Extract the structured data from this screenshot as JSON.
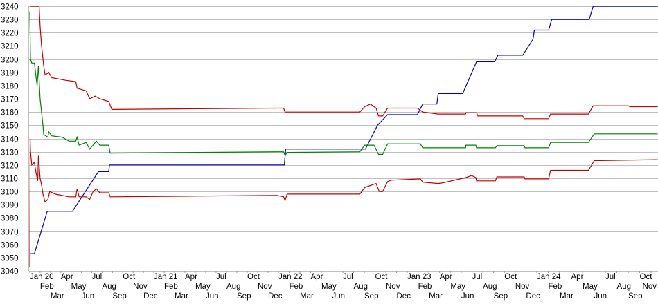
{
  "chart_data": {
    "type": "line",
    "title": "",
    "xlabel": "",
    "ylabel": "",
    "ylim": [
      3040,
      3240
    ],
    "yticks": [
      3040,
      3050,
      3060,
      3070,
      3080,
      3090,
      3100,
      3110,
      3120,
      3130,
      3140,
      3150,
      3160,
      3170,
      3180,
      3190,
      3200,
      3210,
      3220,
      3230,
      3240
    ],
    "xlim": [
      "2020-01-01",
      "2024-11-18"
    ],
    "xticks": [
      "Jan 20",
      "Feb",
      "Mar",
      "Apr",
      "May",
      "Jun",
      "Jul",
      "Aug",
      "Sep",
      "Oct",
      "Nov",
      "Dec",
      "Jan 21",
      "Feb",
      "Mar",
      "Apr",
      "May",
      "Jun",
      "Jul",
      "Aug",
      "Sep",
      "Oct",
      "Nov",
      "Dec",
      "Jan 22",
      "Feb",
      "Mar",
      "Apr",
      "May",
      "Jun",
      "Jul",
      "Aug",
      "Sep",
      "Oct",
      "Nov",
      "Dec",
      "Jan 23",
      "Feb",
      "Mar",
      "Apr",
      "May",
      "Jun",
      "Jul",
      "Aug",
      "Sep",
      "Oct",
      "Nov",
      "Dec",
      "Jan 24",
      "Feb",
      "Mar",
      "Apr",
      "May",
      "Jun",
      "Jul",
      "Aug",
      "Sep",
      "Oct",
      "Nov"
    ],
    "grid": "horizontal",
    "legend": "none",
    "series": [
      {
        "color": "#0000c0",
        "points": [
          [
            "2020-01-01",
            3043
          ],
          [
            "2020-01-02",
            3053
          ],
          [
            "2020-01-15",
            3053
          ],
          [
            "2020-02-21",
            3085
          ],
          [
            "2020-05-05",
            3085
          ],
          [
            "2020-07-21",
            3115
          ],
          [
            "2020-08-21",
            3115
          ],
          [
            "2020-08-23",
            3120
          ],
          [
            "2022-01-18",
            3120
          ],
          [
            "2022-01-22",
            3132
          ],
          [
            "2022-09-04",
            3132
          ],
          [
            "2022-10-08",
            3150
          ],
          [
            "2022-11-06",
            3158
          ],
          [
            "2023-01-30",
            3158
          ],
          [
            "2023-02-13",
            3166
          ],
          [
            "2023-03-24",
            3166
          ],
          [
            "2023-03-28",
            3174
          ],
          [
            "2023-06-05",
            3174
          ],
          [
            "2023-07-14",
            3198
          ],
          [
            "2023-09-04",
            3198
          ],
          [
            "2023-09-13",
            3203
          ],
          [
            "2023-11-22",
            3203
          ],
          [
            "2023-12-21",
            3215
          ],
          [
            "2023-12-25",
            3222
          ],
          [
            "2024-02-02",
            3222
          ],
          [
            "2024-02-10",
            3230
          ],
          [
            "2024-05-19",
            3230
          ],
          [
            "2024-05-30",
            3240
          ],
          [
            "2024-11-18",
            3240
          ]
        ]
      },
      {
        "color": "#c00000",
        "points": [
          [
            "2020-01-01",
            3240
          ],
          [
            "2020-01-29",
            3240
          ],
          [
            "2020-02-01",
            3225
          ],
          [
            "2020-02-05",
            3210
          ],
          [
            "2020-02-11",
            3195
          ],
          [
            "2020-02-15",
            3188
          ],
          [
            "2020-02-25",
            3190
          ],
          [
            "2020-03-05",
            3186
          ],
          [
            "2020-04-15",
            3184
          ],
          [
            "2020-05-15",
            3183
          ],
          [
            "2020-05-19",
            3178
          ],
          [
            "2020-06-15",
            3176
          ],
          [
            "2020-06-25",
            3170
          ],
          [
            "2020-07-11",
            3172
          ],
          [
            "2020-07-25",
            3170
          ],
          [
            "2020-08-21",
            3168
          ],
          [
            "2020-08-30",
            3162
          ],
          [
            "2021-12-27",
            3163
          ],
          [
            "2022-01-16",
            3163
          ],
          [
            "2022-01-20",
            3160
          ],
          [
            "2022-08-19",
            3160
          ],
          [
            "2022-09-02",
            3164
          ],
          [
            "2022-09-18",
            3166
          ],
          [
            "2022-10-04",
            3163
          ],
          [
            "2022-10-11",
            3157
          ],
          [
            "2022-10-23",
            3157
          ],
          [
            "2022-11-06",
            3163
          ],
          [
            "2023-01-30",
            3163
          ],
          [
            "2023-02-13",
            3160
          ],
          [
            "2023-03-28",
            3158.5
          ],
          [
            "2023-06-13",
            3158.5
          ],
          [
            "2023-06-14",
            3159.5
          ],
          [
            "2023-07-14",
            3159.5
          ],
          [
            "2023-07-18",
            3157
          ],
          [
            "2023-11-22",
            3157
          ],
          [
            "2023-11-26",
            3155
          ],
          [
            "2024-02-02",
            3155
          ],
          [
            "2024-02-07",
            3158.5
          ],
          [
            "2024-05-17",
            3158.5
          ],
          [
            "2024-05-30",
            3164.7
          ],
          [
            "2024-09-01",
            3164.7
          ],
          [
            "2024-09-06",
            3164
          ],
          [
            "2024-11-18",
            3164
          ]
        ]
      },
      {
        "color": "#008000",
        "points": [
          [
            "2020-01-01",
            3236
          ],
          [
            "2020-01-03",
            3200
          ],
          [
            "2020-01-07",
            3197
          ],
          [
            "2020-01-15",
            3197
          ],
          [
            "2020-01-19",
            3188
          ],
          [
            "2020-01-23",
            3180
          ],
          [
            "2020-01-27",
            3195
          ],
          [
            "2020-02-01",
            3170
          ],
          [
            "2020-02-05",
            3160
          ],
          [
            "2020-02-09",
            3150
          ],
          [
            "2020-02-11",
            3143
          ],
          [
            "2020-02-23",
            3141
          ],
          [
            "2020-02-25",
            3145
          ],
          [
            "2020-03-05",
            3142
          ],
          [
            "2020-04-05",
            3141
          ],
          [
            "2020-04-25",
            3138
          ],
          [
            "2020-05-15",
            3138
          ],
          [
            "2020-05-19",
            3141
          ],
          [
            "2020-05-25",
            3135
          ],
          [
            "2020-06-15",
            3137
          ],
          [
            "2020-06-25",
            3132
          ],
          [
            "2020-07-15",
            3138
          ],
          [
            "2020-07-25",
            3135
          ],
          [
            "2020-08-21",
            3135
          ],
          [
            "2020-08-25",
            3129
          ],
          [
            "2021-12-27",
            3130
          ],
          [
            "2022-01-16",
            3130
          ],
          [
            "2022-01-20",
            3127
          ],
          [
            "2022-01-26",
            3129.5
          ],
          [
            "2022-08-19",
            3130
          ],
          [
            "2022-09-02",
            3135
          ],
          [
            "2022-09-28",
            3135
          ],
          [
            "2022-10-11",
            3128
          ],
          [
            "2022-10-23",
            3128
          ],
          [
            "2022-11-06",
            3136
          ],
          [
            "2023-02-07",
            3136
          ],
          [
            "2023-02-13",
            3133
          ],
          [
            "2023-06-13",
            3133
          ],
          [
            "2023-06-14",
            3135
          ],
          [
            "2023-07-12",
            3135
          ],
          [
            "2023-07-14",
            3133
          ],
          [
            "2023-09-06",
            3133
          ],
          [
            "2023-09-10",
            3134.6
          ],
          [
            "2023-11-26",
            3134.6
          ],
          [
            "2023-11-28",
            3133
          ],
          [
            "2024-02-02",
            3133
          ],
          [
            "2024-02-07",
            3137
          ],
          [
            "2024-05-17",
            3137
          ],
          [
            "2024-06-02",
            3143.5
          ],
          [
            "2024-11-18",
            3143.5
          ]
        ]
      },
      {
        "color": "#c00000",
        "points": [
          [
            "2020-01-01",
            3043
          ],
          [
            "2020-01-02",
            3140
          ],
          [
            "2020-01-03",
            3130
          ],
          [
            "2020-01-07",
            3120
          ],
          [
            "2020-01-15",
            3122
          ],
          [
            "2020-01-19",
            3115
          ],
          [
            "2020-01-25",
            3108
          ],
          [
            "2020-01-27",
            3127
          ],
          [
            "2020-02-01",
            3110
          ],
          [
            "2020-02-05",
            3105
          ],
          [
            "2020-02-09",
            3098
          ],
          [
            "2020-02-15",
            3092
          ],
          [
            "2020-02-23",
            3094
          ],
          [
            "2020-02-28",
            3100
          ],
          [
            "2020-03-15",
            3098
          ],
          [
            "2020-04-25",
            3096
          ],
          [
            "2020-05-15",
            3096
          ],
          [
            "2020-05-19",
            3102
          ],
          [
            "2020-05-25",
            3096
          ],
          [
            "2020-06-15",
            3096
          ],
          [
            "2020-06-25",
            3094
          ],
          [
            "2020-07-05",
            3100
          ],
          [
            "2020-07-15",
            3102
          ],
          [
            "2020-07-25",
            3099
          ],
          [
            "2020-08-21",
            3099
          ],
          [
            "2020-08-25",
            3096
          ],
          [
            "2021-12-27",
            3097
          ],
          [
            "2022-01-16",
            3096
          ],
          [
            "2022-01-20",
            3093
          ],
          [
            "2022-01-26",
            3098
          ],
          [
            "2022-08-19",
            3098
          ],
          [
            "2022-09-02",
            3103
          ],
          [
            "2022-10-04",
            3106
          ],
          [
            "2022-10-13",
            3100
          ],
          [
            "2022-10-23",
            3100
          ],
          [
            "2022-11-06",
            3107.5
          ],
          [
            "2022-11-16",
            3108.5
          ],
          [
            "2023-02-07",
            3109.5
          ],
          [
            "2023-02-13",
            3107
          ],
          [
            "2023-03-28",
            3106
          ],
          [
            "2023-04-11",
            3106.6
          ],
          [
            "2023-06-14",
            3110.5
          ],
          [
            "2023-06-30",
            3112
          ],
          [
            "2023-07-12",
            3110.5
          ],
          [
            "2023-07-14",
            3108
          ],
          [
            "2023-09-06",
            3108
          ],
          [
            "2023-09-10",
            3111
          ],
          [
            "2023-11-26",
            3111
          ],
          [
            "2023-11-28",
            3109.5
          ],
          [
            "2024-02-02",
            3109.5
          ],
          [
            "2024-02-07",
            3116
          ],
          [
            "2024-05-17",
            3116
          ],
          [
            "2024-06-02",
            3123.3
          ],
          [
            "2024-11-18",
            3124
          ]
        ]
      }
    ]
  }
}
